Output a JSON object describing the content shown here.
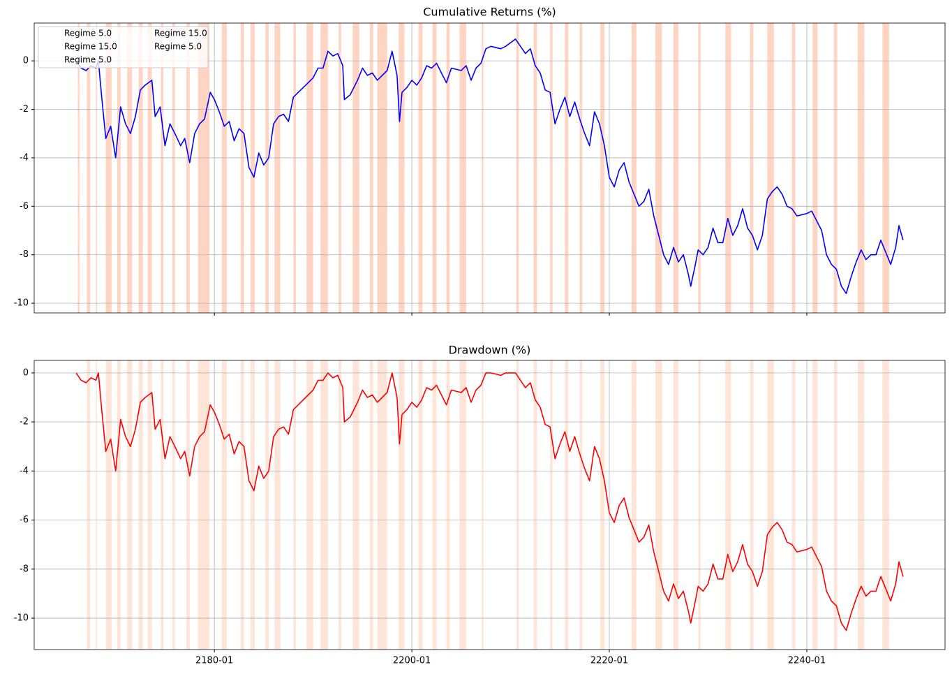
{
  "chart_data": [
    {
      "type": "line",
      "title": "Cumulative Returns (%)",
      "color": "#0000ff",
      "legend": [
        "Regime 5.0",
        "Regime 15.0",
        "Regime 5.0",
        "Regime 15.0",
        "Regime 5.0"
      ],
      "x": [
        "2166-01",
        "2166-07",
        "2167-01",
        "2167-07",
        "2168-01",
        "2168-04",
        "2168-08",
        "2169-01",
        "2169-07",
        "2170-01",
        "2170-07",
        "2171-01",
        "2171-07",
        "2172-01",
        "2172-07",
        "2173-01",
        "2173-09",
        "2174-01",
        "2174-07",
        "2175-01",
        "2175-07",
        "2176-01",
        "2176-08",
        "2177-01",
        "2177-07",
        "2178-01",
        "2178-07",
        "2179-01",
        "2179-08",
        "2180-01",
        "2180-07",
        "2181-01",
        "2181-07",
        "2182-01",
        "2182-07",
        "2183-01",
        "2183-07",
        "2184-01",
        "2184-07",
        "2185-01",
        "2185-07",
        "2186-01",
        "2186-07",
        "2187-01",
        "2187-07",
        "2188-01",
        "2188-07",
        "2189-01",
        "2189-07",
        "2190-01",
        "2190-07",
        "2191-01",
        "2191-07",
        "2192-01",
        "2192-07",
        "2193-01",
        "2193-03",
        "2193-10",
        "2194-07",
        "2195-01",
        "2195-07",
        "2196-01",
        "2196-07",
        "2197-07",
        "2198-01",
        "2198-07",
        "2198-10",
        "2199-01",
        "2199-07",
        "2200-01",
        "2200-07",
        "2201-01",
        "2201-07",
        "2202-01",
        "2202-07",
        "2203-01",
        "2203-07",
        "2204-01",
        "2205-01",
        "2205-07",
        "2206-01",
        "2206-07",
        "2207-01",
        "2207-07",
        "2208-01",
        "2209-01",
        "2209-07",
        "2210-07",
        "2211-01",
        "2211-07",
        "2212-01",
        "2212-07",
        "2213-01",
        "2213-07",
        "2214-01",
        "2214-07",
        "2215-01",
        "2215-07",
        "2216-01",
        "2216-07",
        "2217-01",
        "2217-07",
        "2218-01",
        "2218-07",
        "2219-01",
        "2219-07",
        "2220-01",
        "2220-07",
        "2221-01",
        "2221-07",
        "2222-01",
        "2222-07",
        "2223-01",
        "2223-07",
        "2224-01",
        "2224-07",
        "2225-01",
        "2225-07",
        "2226-01",
        "2226-07",
        "2227-01",
        "2227-07",
        "2228-01",
        "2228-04",
        "2228-09",
        "2229-01",
        "2229-07",
        "2230-01",
        "2230-07",
        "2231-01",
        "2231-07",
        "2232-01",
        "2232-07",
        "2233-01",
        "2233-07",
        "2234-01",
        "2234-07",
        "2235-01",
        "2235-07",
        "2236-01",
        "2236-07",
        "2237-01",
        "2237-07",
        "2238-01",
        "2238-07",
        "2239-01",
        "2240-01",
        "2240-07",
        "2241-01",
        "2241-07",
        "2242-01",
        "2242-07",
        "2243-01",
        "2243-07",
        "2244-01",
        "2244-07",
        "2245-01",
        "2245-07",
        "2246-01",
        "2246-07",
        "2247-01",
        "2247-07",
        "2248-01",
        "2248-07",
        "2249-01",
        "2249-05",
        "2249-10"
      ],
      "values": [
        0,
        -0.3,
        -0.4,
        -0.2,
        -0.3,
        0,
        -1.5,
        -3.2,
        -2.7,
        -4.0,
        -1.9,
        -2.6,
        -3.0,
        -2.3,
        -1.2,
        -1.0,
        -0.8,
        -2.3,
        -1.9,
        -3.5,
        -2.6,
        -3.0,
        -3.5,
        -3.2,
        -4.2,
        -3.0,
        -2.6,
        -2.4,
        -1.3,
        -1.6,
        -2.1,
        -2.7,
        -2.5,
        -3.3,
        -2.8,
        -3.0,
        -4.4,
        -4.8,
        -3.8,
        -4.3,
        -4.0,
        -2.6,
        -2.3,
        -2.2,
        -2.5,
        -1.5,
        -1.3,
        -1.1,
        -0.9,
        -0.7,
        -0.3,
        -0.3,
        0.4,
        0.2,
        0.3,
        -0.2,
        -1.6,
        -1.4,
        -0.8,
        -0.3,
        -0.6,
        -0.5,
        -0.8,
        -0.4,
        0.4,
        -0.6,
        -2.5,
        -1.3,
        -1.1,
        -0.8,
        -1.0,
        -0.7,
        -0.2,
        -0.3,
        -0.1,
        -0.5,
        -0.9,
        -0.3,
        -0.4,
        -0.2,
        -0.8,
        -0.3,
        -0.1,
        0.5,
        0.6,
        0.5,
        0.6,
        0.9,
        0.6,
        0.3,
        0.5,
        -0.2,
        -0.5,
        -1.2,
        -1.3,
        -2.6,
        -2.0,
        -1.5,
        -2.3,
        -1.7,
        -2.4,
        -3.0,
        -3.5,
        -2.1,
        -2.6,
        -3.5,
        -4.8,
        -5.2,
        -4.5,
        -4.2,
        -5.0,
        -5.5,
        -6.0,
        -5.8,
        -5.3,
        -6.4,
        -7.2,
        -8.0,
        -8.4,
        -7.7,
        -8.3,
        -8.0,
        -8.8,
        -9.3,
        -8.5,
        -7.8,
        -8.0,
        -7.7,
        -6.9,
        -7.5,
        -7.5,
        -6.5,
        -7.2,
        -6.8,
        -6.1,
        -6.9,
        -7.2,
        -7.8,
        -7.2,
        -5.7,
        -5.4,
        -5.2,
        -5.5,
        -6.0,
        -6.1,
        -6.4,
        -6.3,
        -6.2,
        -6.6,
        -7.0,
        -8.0,
        -8.4,
        -8.6,
        -9.3,
        -9.6,
        -8.9,
        -8.3,
        -7.8,
        -8.2,
        -8.0,
        -8.0,
        -7.4,
        -7.9,
        -8.4,
        -7.7,
        -6.8,
        -7.4
      ],
      "xlim": [
        "2161-10",
        "2254-01"
      ],
      "ylim": [
        -10.4,
        1.56
      ],
      "yticks": [
        -10,
        -8,
        -6,
        -4,
        -2,
        0
      ],
      "grid": true,
      "span_color": "#ffa07a",
      "shaded_spans": [
        [
          "2166-03",
          "2166-05"
        ],
        [
          "2167-02",
          "2167-06"
        ],
        [
          "2168-01",
          "2168-02"
        ],
        [
          "2169-01",
          "2169-08"
        ],
        [
          "2170-03",
          "2170-07"
        ],
        [
          "2171-03",
          "2171-09"
        ],
        [
          "2172-05",
          "2172-10"
        ],
        [
          "2173-04",
          "2173-09"
        ],
        [
          "2174-08",
          "2174-11"
        ],
        [
          "2175-10",
          "2176-01"
        ],
        [
          "2177-03",
          "2177-07"
        ],
        [
          "2178-05",
          "2179-07"
        ],
        [
          "2180-10",
          "2181-04"
        ],
        [
          "2182-09",
          "2183-01"
        ],
        [
          "2183-09",
          "2184-02"
        ],
        [
          "2185-03",
          "2185-07"
        ],
        [
          "2186-02",
          "2186-09"
        ],
        [
          "2188-01",
          "2188-04"
        ],
        [
          "2189-05",
          "2190-01"
        ],
        [
          "2190-10",
          "2191-07"
        ],
        [
          "2192-08",
          "2192-11"
        ],
        [
          "2194-01",
          "2194-09"
        ],
        [
          "2195-10",
          "2196-02"
        ],
        [
          "2196-07",
          "2197-07"
        ],
        [
          "2198-09",
          "2199-04"
        ],
        [
          "2200-09",
          "2201-02"
        ],
        [
          "2202-02",
          "2202-07"
        ],
        [
          "2203-07",
          "2203-11"
        ],
        [
          "2204-11",
          "2205-07"
        ],
        [
          "2207-02",
          "2207-04"
        ],
        [
          "2210-08",
          "2210-11"
        ],
        [
          "2212-05",
          "2212-09"
        ],
        [
          "2214-01",
          "2214-04"
        ],
        [
          "2215-07",
          "2215-11"
        ],
        [
          "2217-01",
          "2217-04"
        ],
        [
          "2219-02",
          "2219-07"
        ],
        [
          "2222-04",
          "2222-10"
        ],
        [
          "2224-09",
          "2225-05"
        ],
        [
          "2226-07",
          "2227-01"
        ],
        [
          "2229-01",
          "2229-04"
        ],
        [
          "2231-10",
          "2232-05"
        ],
        [
          "2234-04",
          "2234-08"
        ],
        [
          "2236-01",
          "2236-09"
        ],
        [
          "2238-07",
          "2238-11"
        ],
        [
          "2240-08",
          "2241-02"
        ],
        [
          "2242-10",
          "2243-02"
        ],
        [
          "2245-03",
          "2245-11"
        ],
        [
          "2247-09",
          "2248-05"
        ]
      ]
    },
    {
      "type": "line",
      "title": "Drawdown (%)",
      "color": "#ff0000",
      "x": [
        "2166-01",
        "2166-07",
        "2167-01",
        "2167-07",
        "2168-01",
        "2168-04",
        "2168-08",
        "2169-01",
        "2169-07",
        "2170-01",
        "2170-07",
        "2171-01",
        "2171-07",
        "2172-01",
        "2172-07",
        "2173-01",
        "2173-09",
        "2174-01",
        "2174-07",
        "2175-01",
        "2175-07",
        "2176-01",
        "2176-08",
        "2177-01",
        "2177-07",
        "2178-01",
        "2178-07",
        "2179-01",
        "2179-08",
        "2180-01",
        "2180-07",
        "2181-01",
        "2181-07",
        "2182-01",
        "2182-07",
        "2183-01",
        "2183-07",
        "2184-01",
        "2184-07",
        "2185-01",
        "2185-07",
        "2186-01",
        "2186-07",
        "2187-01",
        "2187-07",
        "2188-01",
        "2188-07",
        "2189-01",
        "2189-07",
        "2190-01",
        "2190-07",
        "2191-01",
        "2191-07",
        "2192-01",
        "2192-07",
        "2193-01",
        "2193-03",
        "2193-10",
        "2194-07",
        "2195-01",
        "2195-07",
        "2196-01",
        "2196-07",
        "2197-07",
        "2198-01",
        "2198-07",
        "2198-10",
        "2199-01",
        "2199-07",
        "2200-01",
        "2200-07",
        "2201-01",
        "2201-07",
        "2202-01",
        "2202-07",
        "2203-01",
        "2203-07",
        "2204-01",
        "2205-01",
        "2205-07",
        "2206-01",
        "2206-07",
        "2207-01",
        "2207-07",
        "2208-01",
        "2209-01",
        "2209-07",
        "2210-07",
        "2211-01",
        "2211-07",
        "2212-01",
        "2212-07",
        "2213-01",
        "2213-07",
        "2214-01",
        "2214-07",
        "2215-01",
        "2215-07",
        "2216-01",
        "2216-07",
        "2217-01",
        "2217-07",
        "2218-01",
        "2218-07",
        "2219-01",
        "2219-07",
        "2220-01",
        "2220-07",
        "2221-01",
        "2221-07",
        "2222-01",
        "2222-07",
        "2223-01",
        "2223-07",
        "2224-01",
        "2224-07",
        "2225-01",
        "2225-07",
        "2226-01",
        "2226-07",
        "2227-01",
        "2227-07",
        "2228-01",
        "2228-04",
        "2228-09",
        "2229-01",
        "2229-07",
        "2230-01",
        "2230-07",
        "2231-01",
        "2231-07",
        "2232-01",
        "2232-07",
        "2233-01",
        "2233-07",
        "2234-01",
        "2234-07",
        "2235-01",
        "2235-07",
        "2236-01",
        "2236-07",
        "2237-01",
        "2237-07",
        "2238-01",
        "2238-07",
        "2239-01",
        "2240-01",
        "2240-07",
        "2241-01",
        "2241-07",
        "2242-01",
        "2242-07",
        "2243-01",
        "2243-07",
        "2244-01",
        "2244-07",
        "2245-01",
        "2245-07",
        "2246-01",
        "2246-07",
        "2247-01",
        "2247-07",
        "2248-01",
        "2248-07",
        "2249-01",
        "2249-05",
        "2249-10"
      ],
      "values": [
        0,
        -0.3,
        -0.4,
        -0.2,
        -0.3,
        0,
        -1.5,
        -3.2,
        -2.7,
        -4.0,
        -1.9,
        -2.6,
        -3.0,
        -2.3,
        -1.2,
        -1.0,
        -0.8,
        -2.3,
        -1.9,
        -3.5,
        -2.6,
        -3.0,
        -3.5,
        -3.2,
        -4.2,
        -3.0,
        -2.6,
        -2.4,
        -1.3,
        -1.6,
        -2.1,
        -2.7,
        -2.5,
        -3.3,
        -2.8,
        -3.0,
        -4.4,
        -4.8,
        -3.8,
        -4.3,
        -4.0,
        -2.6,
        -2.3,
        -2.2,
        -2.5,
        -1.5,
        -1.3,
        -1.1,
        -0.9,
        -0.7,
        -0.3,
        -0.3,
        0,
        -0.2,
        -0.1,
        -0.6,
        -2.0,
        -1.8,
        -1.2,
        -0.7,
        -1.0,
        -0.9,
        -1.2,
        -0.8,
        0,
        -1.0,
        -2.9,
        -1.7,
        -1.5,
        -1.2,
        -1.4,
        -1.1,
        -0.6,
        -0.7,
        -0.5,
        -0.9,
        -1.3,
        -0.7,
        -0.8,
        -0.6,
        -1.2,
        -0.7,
        -0.5,
        0,
        0,
        -0.1,
        0,
        0,
        -0.3,
        -0.6,
        -0.4,
        -1.1,
        -1.4,
        -2.1,
        -2.2,
        -3.5,
        -2.9,
        -2.4,
        -3.2,
        -2.6,
        -3.3,
        -3.9,
        -4.4,
        -3.0,
        -3.5,
        -4.4,
        -5.7,
        -6.1,
        -5.4,
        -5.1,
        -5.9,
        -6.4,
        -6.9,
        -6.7,
        -6.2,
        -7.3,
        -8.1,
        -8.9,
        -9.3,
        -8.6,
        -9.2,
        -8.9,
        -9.7,
        -10.2,
        -9.4,
        -8.7,
        -8.9,
        -8.6,
        -7.8,
        -8.4,
        -8.4,
        -7.4,
        -8.1,
        -7.7,
        -7.0,
        -7.8,
        -8.1,
        -8.7,
        -8.1,
        -6.6,
        -6.3,
        -6.1,
        -6.4,
        -6.9,
        -7.0,
        -7.3,
        -7.2,
        -7.1,
        -7.5,
        -7.9,
        -8.9,
        -9.3,
        -9.5,
        -10.2,
        -10.5,
        -9.8,
        -9.2,
        -8.7,
        -9.1,
        -8.9,
        -8.9,
        -8.3,
        -8.8,
        -9.3,
        -8.6,
        -7.7,
        -8.3
      ],
      "xlim": [
        "2161-10",
        "2254-01"
      ],
      "ylim": [
        -11.28,
        0.51
      ],
      "yticks": [
        -10,
        -8,
        -6,
        -4,
        -2,
        0
      ],
      "xticks": [
        "2180-01",
        "2200-01",
        "2220-01",
        "2240-01"
      ],
      "grid": true,
      "span_color": "#ffc4a8",
      "shaded_spans": [
        [
          "2167-02",
          "2167-06"
        ],
        [
          "2168-01",
          "2168-02"
        ],
        [
          "2169-01",
          "2169-08"
        ],
        [
          "2170-03",
          "2170-07"
        ],
        [
          "2171-03",
          "2171-09"
        ],
        [
          "2172-05",
          "2172-10"
        ],
        [
          "2173-04",
          "2173-09"
        ],
        [
          "2174-08",
          "2174-11"
        ],
        [
          "2175-10",
          "2176-01"
        ],
        [
          "2177-03",
          "2177-07"
        ],
        [
          "2178-05",
          "2179-07"
        ],
        [
          "2180-10",
          "2181-04"
        ],
        [
          "2182-09",
          "2183-01"
        ],
        [
          "2183-09",
          "2184-02"
        ],
        [
          "2185-03",
          "2185-07"
        ],
        [
          "2186-02",
          "2186-09"
        ],
        [
          "2188-01",
          "2188-04"
        ],
        [
          "2189-05",
          "2190-01"
        ],
        [
          "2190-10",
          "2191-07"
        ],
        [
          "2192-08",
          "2192-11"
        ],
        [
          "2194-01",
          "2194-09"
        ],
        [
          "2195-10",
          "2196-02"
        ],
        [
          "2196-07",
          "2197-07"
        ],
        [
          "2198-09",
          "2199-04"
        ],
        [
          "2200-09",
          "2201-02"
        ],
        [
          "2202-02",
          "2202-07"
        ],
        [
          "2203-07",
          "2203-11"
        ],
        [
          "2204-11",
          "2205-07"
        ],
        [
          "2207-02",
          "2207-04"
        ],
        [
          "2210-08",
          "2210-11"
        ],
        [
          "2212-05",
          "2212-09"
        ],
        [
          "2214-01",
          "2214-04"
        ],
        [
          "2215-07",
          "2215-11"
        ],
        [
          "2217-01",
          "2217-04"
        ],
        [
          "2219-02",
          "2219-07"
        ],
        [
          "2222-04",
          "2222-10"
        ],
        [
          "2224-09",
          "2225-05"
        ],
        [
          "2226-07",
          "2227-01"
        ],
        [
          "2229-01",
          "2229-04"
        ],
        [
          "2231-10",
          "2232-05"
        ],
        [
          "2234-04",
          "2234-08"
        ],
        [
          "2236-01",
          "2236-09"
        ],
        [
          "2238-07",
          "2238-11"
        ],
        [
          "2240-08",
          "2241-02"
        ],
        [
          "2242-10",
          "2243-02"
        ],
        [
          "2245-03",
          "2245-11"
        ],
        [
          "2247-09",
          "2248-05"
        ]
      ]
    }
  ]
}
